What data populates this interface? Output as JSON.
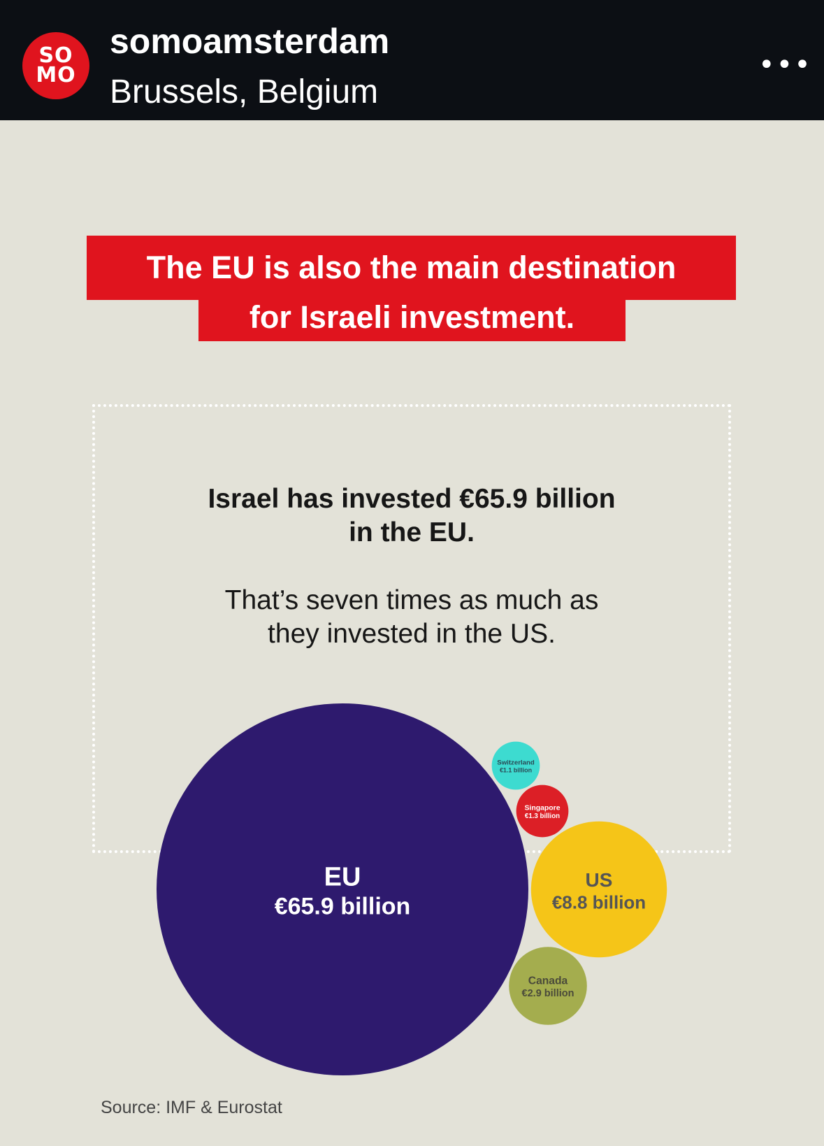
{
  "header": {
    "username": "somoamsterdam",
    "location": "Brussels, Belgium",
    "logo_text": "SO MO",
    "more_icon": "ellipsis-icon"
  },
  "post": {
    "title_line1": "The EU is also the main destination",
    "title_line2": "for Israeli investment.",
    "para1_line1": "Israel has invested €65.9 billion",
    "para1_line2": "in the EU.",
    "para2_line1": "That’s seven times as much as",
    "para2_line2": "they invested in the US.",
    "source": "Source: IMF & Eurostat"
  },
  "chart_data": {
    "type": "bubble",
    "unit": "€ billion",
    "bubbles": [
      {
        "label": "EU",
        "value_label": "€65.9 billion",
        "value": 65.9,
        "color": "#2e1a6e",
        "text_color": "#ffffff"
      },
      {
        "label": "Switzerland",
        "value_label": "€1.1 billion",
        "value": 1.1,
        "color": "#3ddbd0",
        "text_color": "#2a4a55"
      },
      {
        "label": "Singapore",
        "value_label": "€1.3 billion",
        "value": 1.3,
        "color": "#dc1f26",
        "text_color": "#ffffff"
      },
      {
        "label": "US",
        "value_label": "€8.8 billion",
        "value": 8.8,
        "color": "#f5c518",
        "text_color": "#555555"
      },
      {
        "label": "Canada",
        "value_label": "€2.9 billion",
        "value": 2.9,
        "color": "#a4ad4e",
        "text_color": "#4a4a3a"
      }
    ]
  }
}
